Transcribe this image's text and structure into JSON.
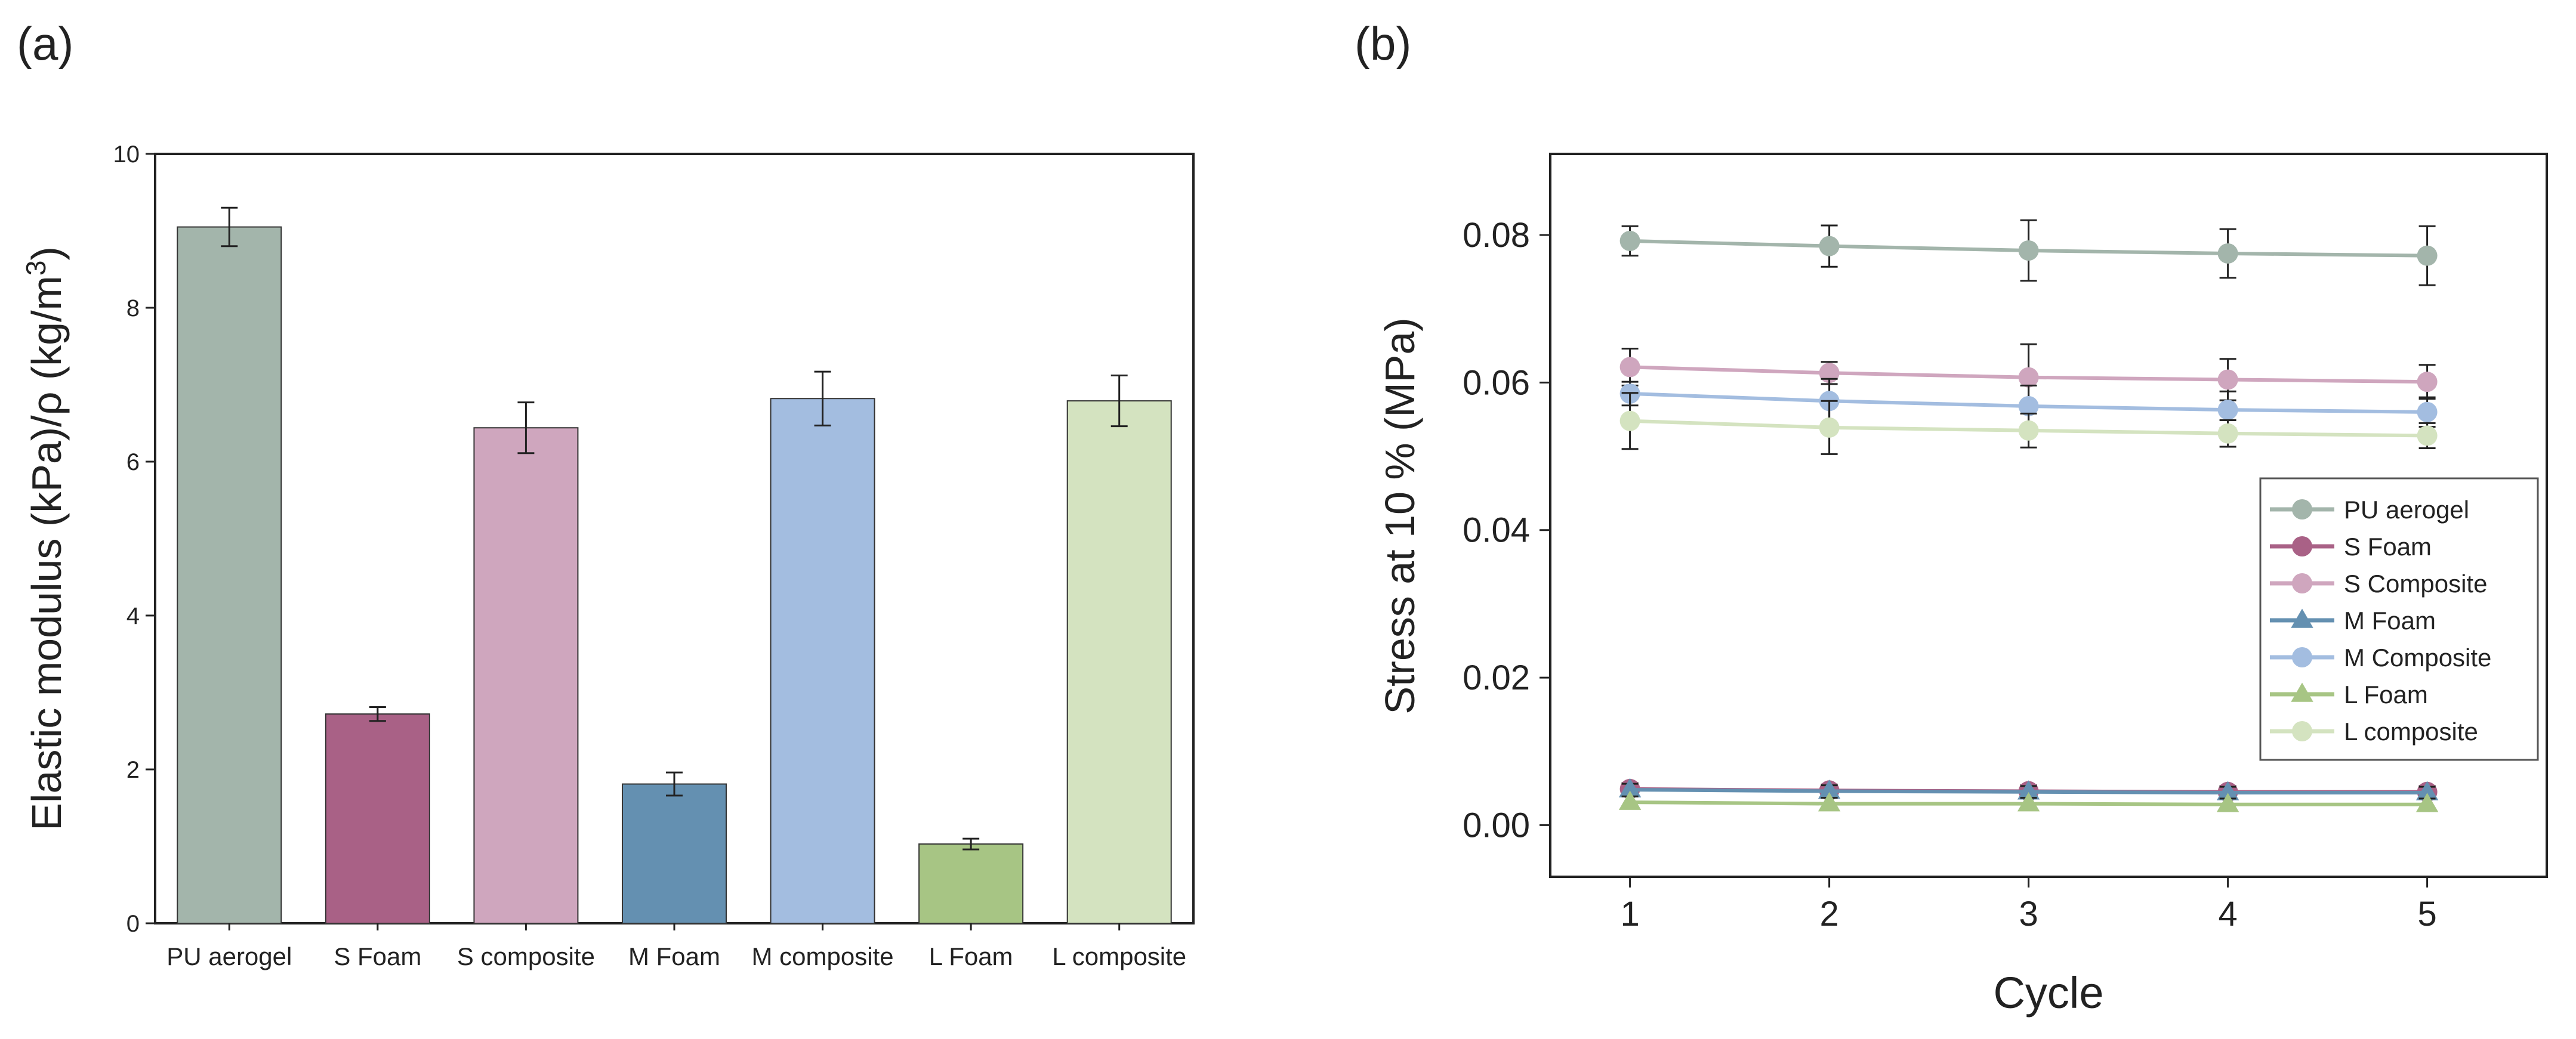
{
  "panels": {
    "a_label": "(a)",
    "b_label": "(b)"
  },
  "chart_data": [
    {
      "type": "bar",
      "panel": "(a)",
      "title": "",
      "xlabel": "",
      "ylabel_main": "Elastic modulus (kPa)/",
      "ylabel_rho": "ρ",
      "ylabel_units": " (kg/m",
      "ylabel_exp": "3",
      "ylabel_close": ")",
      "ylim": [
        0,
        10
      ],
      "yticks": [
        0,
        2,
        4,
        6,
        8,
        10
      ],
      "categories": [
        "PU aerogel",
        "S Foam",
        "S composite",
        "M Foam",
        "M composite",
        "L Foam",
        "L composite"
      ],
      "values": [
        9.05,
        2.72,
        6.44,
        1.81,
        6.82,
        1.03,
        6.79
      ],
      "errors": [
        0.25,
        0.09,
        0.33,
        0.15,
        0.35,
        0.07,
        0.33
      ],
      "colors": [
        "#a3b5ab",
        "#a96186",
        "#cfa6be",
        "#6490b1",
        "#a3bde0",
        "#a7c584",
        "#d4e3c0"
      ],
      "grid": false
    },
    {
      "type": "line",
      "panel": "(b)",
      "title": "",
      "xlabel": "Cycle",
      "ylabel": "Stress at 10 % (MPa)",
      "xlim": [
        0.6,
        5.6
      ],
      "ylim": [
        -0.007,
        0.091
      ],
      "xticks": [
        1,
        2,
        3,
        4,
        5
      ],
      "yticks": [
        0.0,
        0.02,
        0.04,
        0.06,
        0.08
      ],
      "ytick_labels": [
        "0.00",
        "0.02",
        "0.04",
        "0.06",
        "0.08"
      ],
      "x": [
        1,
        2,
        3,
        4,
        5
      ],
      "legend_position": "right-middle",
      "grid": false,
      "series": [
        {
          "name": "PU aerogel",
          "marker": "circle",
          "color": "#a3b5ab",
          "values": [
            0.0792,
            0.0785,
            0.0779,
            0.0775,
            0.0772
          ],
          "errors": [
            0.002,
            0.0028,
            0.0041,
            0.0033,
            0.004
          ]
        },
        {
          "name": "S Foam",
          "marker": "circle",
          "color": "#a96186",
          "values": [
            0.0049,
            0.0047,
            0.0046,
            0.0045,
            0.0045
          ],
          "errors": [
            0.0008,
            0.0008,
            0.0008,
            0.0008,
            0.0008
          ]
        },
        {
          "name": "S Composite",
          "marker": "circle",
          "color": "#cfa6be",
          "values": [
            0.0621,
            0.0613,
            0.0607,
            0.0604,
            0.0601
          ],
          "errors": [
            0.0025,
            0.0015,
            0.0045,
            0.0028,
            0.0023
          ]
        },
        {
          "name": "M Foam",
          "marker": "triangle",
          "color": "#6490b1",
          "values": [
            0.0048,
            0.0046,
            0.0045,
            0.0044,
            0.0044
          ],
          "errors": [
            0.0008,
            0.0008,
            0.0008,
            0.0008,
            0.0008
          ]
        },
        {
          "name": "M Composite",
          "marker": "circle",
          "color": "#a3bde0",
          "values": [
            0.0585,
            0.0575,
            0.0568,
            0.0563,
            0.056
          ],
          "errors": [
            0.0016,
            0.003,
            0.0028,
            0.0025,
            0.002
          ]
        },
        {
          "name": "L Foam",
          "marker": "triangle",
          "color": "#a7c584",
          "values": [
            0.0031,
            0.0029,
            0.0029,
            0.0028,
            0.0028
          ],
          "errors": [
            0.0008,
            0.0008,
            0.0008,
            0.0008,
            0.0008
          ]
        },
        {
          "name": "L composite",
          "marker": "circle",
          "color": "#d4e3c0",
          "values": [
            0.0548,
            0.0539,
            0.0535,
            0.0531,
            0.0528
          ],
          "errors": [
            0.0038,
            0.0036,
            0.0023,
            0.0018,
            0.0017
          ]
        }
      ]
    }
  ]
}
